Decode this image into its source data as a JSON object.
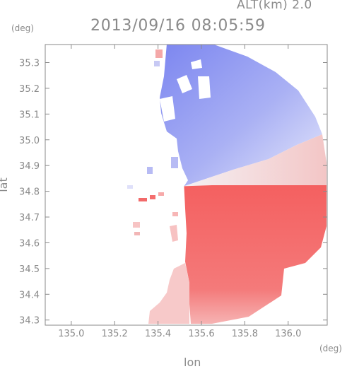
{
  "header": {
    "altitude": "ALT(km) 2.0",
    "timestamp": "2013/09/16 08:05:59"
  },
  "chart_data": {
    "type": "heatmap",
    "title": "2013/09/16 08:05:59",
    "subtitle": "ALT(km) 2.0",
    "xlabel": "lon",
    "ylabel": "lat",
    "x_unit": "(deg)",
    "y_unit": "(deg)",
    "xlim": [
      134.88,
      136.18
    ],
    "ylim": [
      34.28,
      35.37
    ],
    "x_ticks": [
      135.0,
      135.2,
      135.4,
      135.6,
      135.8,
      136.0
    ],
    "x_tick_labels": [
      "135.0",
      "135.2",
      "135.4",
      "135.6",
      "135.8",
      "136.0"
    ],
    "y_ticks": [
      34.3,
      34.4,
      34.5,
      34.6,
      34.7,
      34.8,
      34.9,
      35.0,
      35.1,
      35.2,
      35.3
    ],
    "y_tick_labels": [
      "34.3",
      "34.4",
      "34.5",
      "34.6",
      "34.7",
      "34.8",
      "34.9",
      "35.0",
      "35.1",
      "35.2",
      "35.3"
    ],
    "radar_center": [
      135.52,
      34.82
    ],
    "colors": {
      "approaching": "#6f78ee",
      "receding": "#f25a5a",
      "neutral": "#ffffff",
      "axis": "#8a8a8a"
    },
    "grid": false
  }
}
